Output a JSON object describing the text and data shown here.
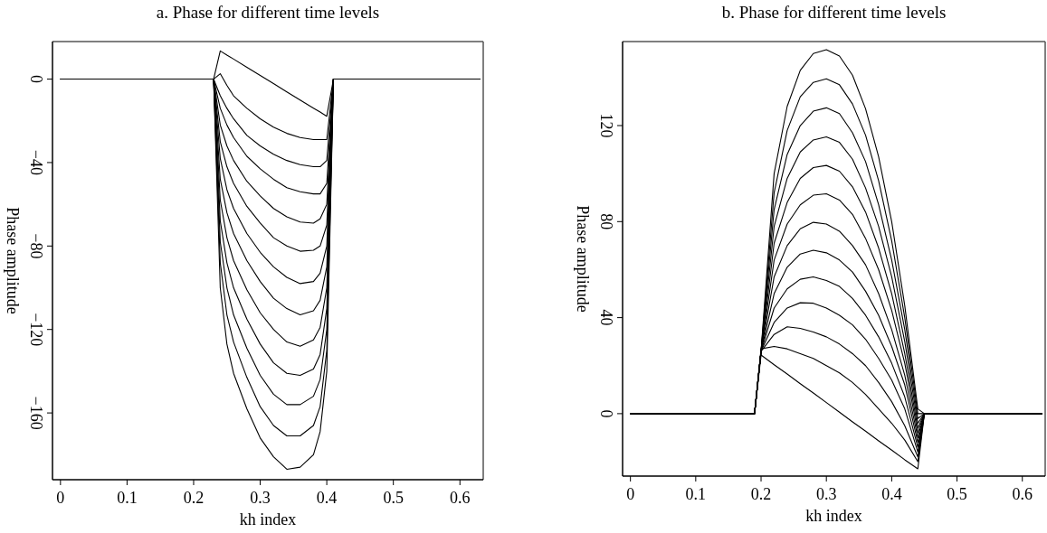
{
  "chart_data": [
    {
      "type": "line",
      "title": "a. Phase for different time levels",
      "xlabel": "kh index",
      "ylabel": "Phase amplitude",
      "xlim": [
        -0.012,
        0.635
      ],
      "ylim": [
        -192,
        18
      ],
      "xticks": [
        0,
        0.1,
        0.2,
        0.3,
        0.4,
        0.5,
        0.6
      ],
      "yticks": [
        0,
        {
          "value": -40,
          "label": "−40"
        },
        {
          "value": -80,
          "label": "−80"
        },
        {
          "value": -120,
          "label": "−120"
        },
        {
          "value": -160,
          "label": "−160"
        }
      ],
      "x": [
        0,
        0.23,
        0.24,
        0.25,
        0.26,
        0.28,
        0.3,
        0.32,
        0.34,
        0.36,
        0.38,
        0.39,
        0.4,
        0.41,
        0.63
      ],
      "series": [
        {
          "color": "#000000",
          "values": [
            0,
            0,
            13.5,
            11.5,
            9.6,
            5.7,
            1.8,
            -2.1,
            -6.1,
            -10,
            -13.9,
            -15.8,
            -17.8,
            0,
            0
          ]
        },
        {
          "color": "#000000",
          "values": [
            0,
            0,
            2.6,
            -3,
            -8,
            -14,
            -19,
            -23,
            -26,
            -28,
            -29,
            -29,
            -29,
            0,
            0
          ]
        },
        {
          "color": "#000000",
          "values": [
            0,
            0,
            -8,
            -14,
            -19,
            -27,
            -32,
            -36,
            -39,
            -41,
            -42,
            -42,
            -39,
            0,
            0
          ]
        },
        {
          "color": "#000000",
          "values": [
            0,
            0,
            -14,
            -22,
            -28,
            -37,
            -43,
            -48,
            -52,
            -54,
            -55,
            -55,
            -50,
            0,
            0
          ]
        },
        {
          "color": "#000000",
          "values": [
            0,
            0,
            -22,
            -32,
            -39,
            -49,
            -56,
            -62,
            -66,
            -68.5,
            -69,
            -67,
            -60,
            0,
            0
          ]
        },
        {
          "color": "#000000",
          "values": [
            0,
            0,
            -30,
            -42,
            -50,
            -61,
            -69,
            -76,
            -80,
            -82.5,
            -82,
            -80,
            -70,
            0,
            0
          ]
        },
        {
          "color": "#000000",
          "values": [
            0,
            0,
            -38,
            -53,
            -62,
            -74,
            -83,
            -90,
            -95,
            -98,
            -97,
            -93,
            -80,
            0,
            0
          ]
        },
        {
          "color": "#000000",
          "values": [
            0,
            0,
            -48,
            -64,
            -74,
            -87,
            -97,
            -105,
            -110,
            -113,
            -111,
            -106,
            -90,
            0,
            0
          ]
        },
        {
          "color": "#000000",
          "values": [
            0,
            0,
            -58,
            -76,
            -87,
            -101,
            -112,
            -120,
            -126,
            -128,
            -125,
            -119,
            -100,
            0,
            0
          ]
        },
        {
          "color": "#000000",
          "values": [
            0,
            0,
            -68,
            -88,
            -100,
            -115,
            -127,
            -136,
            -141,
            -142,
            -139,
            -132,
            -110,
            0,
            0
          ]
        },
        {
          "color": "#000000",
          "values": [
            0,
            0,
            -78,
            -100,
            -113,
            -129,
            -142,
            -151,
            -156,
            -156,
            -152,
            -144,
            -120,
            0,
            0
          ]
        },
        {
          "color": "#000000",
          "values": [
            0,
            0,
            -88,
            -113,
            -126,
            -143,
            -157,
            -166,
            -171,
            -171,
            -166,
            -157,
            -130,
            0,
            0
          ]
        },
        {
          "color": "#000000",
          "values": [
            0,
            0,
            -100,
            -127,
            -141,
            -158,
            -172,
            -181,
            -187,
            -186,
            -180,
            -169,
            -140,
            0,
            0
          ]
        }
      ]
    },
    {
      "type": "line",
      "title": "b. Phase for different time levels",
      "xlabel": "kh index",
      "ylabel": "Phase amplitude",
      "xlim": [
        -0.012,
        0.635
      ],
      "ylim": [
        -26,
        155
      ],
      "xticks": [
        0,
        0.1,
        0.2,
        0.3,
        0.4,
        0.5,
        0.6
      ],
      "yticks": [
        0,
        40,
        80,
        120
      ],
      "x": [
        0,
        0.19,
        0.2,
        0.22,
        0.24,
        0.26,
        0.28,
        0.3,
        0.32,
        0.34,
        0.36,
        0.38,
        0.4,
        0.42,
        0.44,
        0.45,
        0.63
      ],
      "series": [
        {
          "color": "#000000",
          "values": [
            0,
            0,
            26,
            100,
            128,
            143,
            150,
            151.6,
            149,
            141,
            127,
            107,
            80,
            45,
            2,
            0,
            0
          ]
        },
        {
          "color": "#000000",
          "values": [
            0,
            0,
            26,
            92,
            118,
            132,
            138,
            139.5,
            137,
            129,
            116,
            97,
            72,
            40,
            0,
            0,
            0
          ]
        },
        {
          "color": "#000000",
          "values": [
            0,
            0,
            26,
            85,
            108,
            120,
            126,
            127.4,
            125,
            117,
            105,
            87,
            64,
            35,
            -2,
            0,
            0
          ]
        },
        {
          "color": "#000000",
          "values": [
            0,
            0,
            26,
            78,
            98,
            109,
            114,
            115.3,
            113,
            106,
            94,
            78,
            57,
            30,
            -4,
            0,
            0
          ]
        },
        {
          "color": "#000000",
          "values": [
            0,
            0,
            26,
            71,
            88,
            98,
            102.5,
            103.4,
            101,
            94.5,
            84,
            69,
            50,
            25,
            -6,
            0,
            0
          ]
        },
        {
          "color": "#000000",
          "values": [
            0,
            0,
            26,
            64,
            79,
            87,
            91,
            91.6,
            89,
            83,
            73,
            60,
            43,
            21,
            -8,
            0,
            0
          ]
        },
        {
          "color": "#000000",
          "values": [
            0,
            0,
            26,
            57,
            70,
            77,
            79.7,
            79,
            76,
            70,
            62,
            50,
            35,
            16,
            -10,
            0,
            0
          ]
        },
        {
          "color": "#000000",
          "values": [
            0,
            0,
            26,
            50,
            61,
            66.5,
            68.1,
            67,
            64,
            59,
            51,
            41,
            28,
            12,
            -12,
            0,
            0
          ]
        },
        {
          "color": "#000000",
          "values": [
            0,
            0,
            26,
            44,
            52,
            56,
            57,
            55.5,
            53,
            48,
            41,
            32,
            21,
            7,
            -14,
            0,
            0
          ]
        },
        {
          "color": "#000000",
          "values": [
            0,
            0,
            26,
            38,
            44,
            46.2,
            46,
            44,
            41,
            37,
            31,
            23,
            14,
            2,
            -16,
            0,
            0
          ]
        },
        {
          "color": "#000000",
          "values": [
            0,
            0,
            26,
            33,
            36.2,
            35.5,
            34,
            32,
            29,
            25,
            20,
            13,
            5,
            -5,
            -18,
            0,
            0
          ]
        },
        {
          "color": "#000000",
          "values": [
            0,
            0,
            27,
            28,
            27,
            25,
            23,
            20,
            17,
            13,
            8,
            2,
            -4,
            -11,
            -20,
            0,
            0
          ]
        },
        {
          "color": "#000000",
          "values": [
            0,
            0,
            24.4,
            20.4,
            16.5,
            12.5,
            8.6,
            4.6,
            0.6,
            -3.4,
            -7.3,
            -11.3,
            -15.2,
            -19.2,
            -23,
            0,
            0
          ]
        }
      ]
    }
  ]
}
